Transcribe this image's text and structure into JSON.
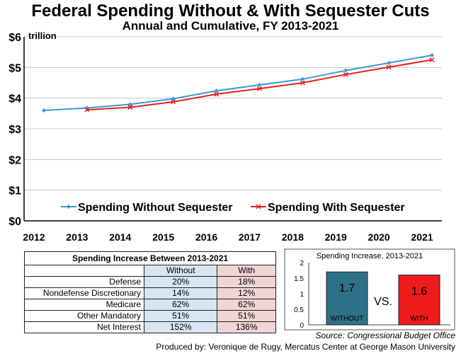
{
  "chart_data": [
    {
      "type": "line",
      "title": "Federal Spending Without & With Sequester Cuts",
      "subtitle": "Annual and Cumulative, FY 2013-2021",
      "ylabel": "trillion",
      "ylim": [
        0,
        6
      ],
      "yticks": [
        "$0",
        "$1",
        "$2",
        "$3",
        "$4",
        "$5",
        "$6"
      ],
      "x": [
        "2012",
        "2013",
        "2014",
        "2015",
        "2016",
        "2017",
        "2018",
        "2019",
        "2020",
        "2021"
      ],
      "grid": true,
      "legend": "bottom",
      "series": [
        {
          "name": "Spending Without Sequester",
          "color": "#3a9ad9",
          "values": [
            3.6,
            3.68,
            3.8,
            3.98,
            4.24,
            4.43,
            4.62,
            4.9,
            5.15,
            5.4
          ]
        },
        {
          "name": "Spending With Sequester",
          "color": "#e8211c",
          "values": [
            null,
            3.62,
            3.7,
            3.88,
            4.13,
            4.31,
            4.5,
            4.77,
            5.01,
            5.25
          ]
        }
      ]
    },
    {
      "type": "table",
      "title": "Spending Increase Between 2013-2021",
      "columns": [
        "Without",
        "With"
      ],
      "rows": [
        {
          "label": "Defense",
          "without": "20%",
          "with": "18%"
        },
        {
          "label": "Nondefense Discretionary",
          "without": "14%",
          "with": "12%"
        },
        {
          "label": "Medicare",
          "without": "62%",
          "with": "62%"
        },
        {
          "label": "Other Mandatory",
          "without": "51%",
          "with": "51%"
        },
        {
          "label": "Net Interest",
          "without": "152%",
          "with": "136%"
        }
      ]
    },
    {
      "type": "bar",
      "title": "Spending Increase, 2013-2021",
      "ylim": [
        0,
        2
      ],
      "yticks": [
        "0",
        "0.5",
        "1",
        "1.5",
        "2"
      ],
      "categories": [
        "WITHOUT",
        "WITH"
      ],
      "values": [
        1.7,
        1.6
      ],
      "value_labels": [
        "1.7",
        "1.6"
      ],
      "colors": [
        "#2e7186",
        "#ee1c1c"
      ],
      "separator": "VS."
    }
  ],
  "source": "Source: Congressional Budget Office",
  "produced_by": "Produced by: Veronique de Rugy, Mercatus Center at George Mason University"
}
